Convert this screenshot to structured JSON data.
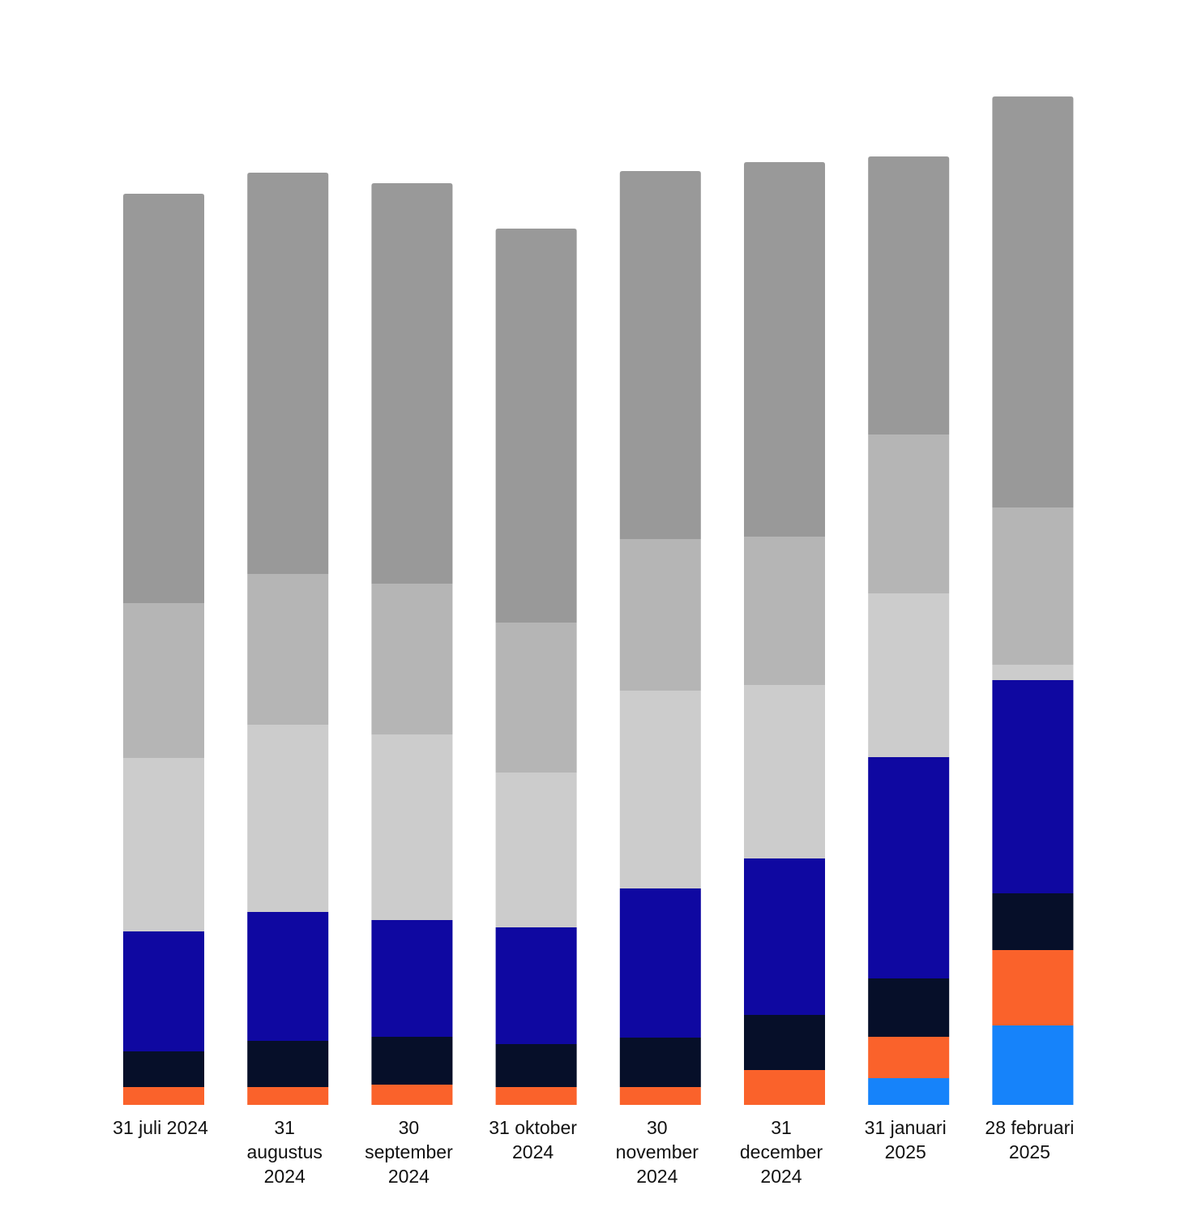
{
  "chart_data": {
    "type": "bar",
    "stacked": true,
    "title": "",
    "xlabel": "",
    "ylabel": "",
    "legend": "none",
    "grid": false,
    "ylim": [
      0,
      1245
    ],
    "categories": [
      [
        "31 juli 2024"
      ],
      [
        "31",
        "augustus",
        "2024"
      ],
      [
        "30",
        "september",
        "2024"
      ],
      [
        "31 oktober",
        "2024"
      ],
      [
        "30",
        "november",
        "2024"
      ],
      [
        "31",
        "december",
        "2024"
      ],
      [
        "31 januari",
        "2025"
      ],
      [
        "28 februari",
        "2025"
      ]
    ],
    "series": [
      {
        "color": "#1683fa",
        "values": [
          0,
          0,
          0,
          0,
          0,
          0,
          33,
          98
        ]
      },
      {
        "color": "#fa622b",
        "values": [
          22,
          22,
          25,
          22,
          22,
          43,
          51,
          93
        ]
      },
      {
        "color": "#060f29",
        "values": [
          44,
          57,
          59,
          53,
          61,
          68,
          72,
          70
        ]
      },
      {
        "color": "#0f08a1",
        "values": [
          148,
          159,
          144,
          144,
          184,
          193,
          273,
          263
        ]
      },
      {
        "color": "#cccccc",
        "values": [
          214,
          231,
          229,
          191,
          244,
          214,
          202,
          19
        ]
      },
      {
        "color": "#b5b5b5",
        "values": [
          191,
          186,
          186,
          185,
          187,
          183,
          196,
          194
        ]
      },
      {
        "color": "#999999",
        "values": [
          505,
          495,
          494,
          486,
          454,
          462,
          343,
          507
        ]
      }
    ]
  }
}
